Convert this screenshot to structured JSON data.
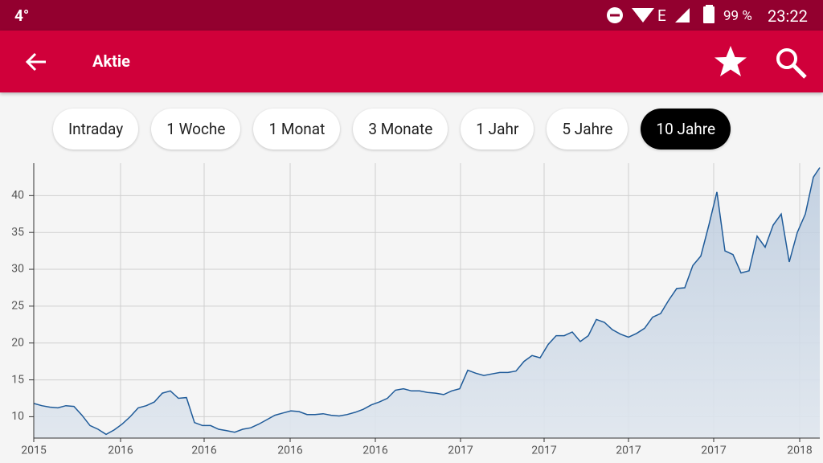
{
  "status_bar": {
    "temperature": "4°",
    "network": "E",
    "battery": "99 %",
    "time": "23:22"
  },
  "toolbar": {
    "title": "Aktie"
  },
  "range_buttons": {
    "options": [
      "Intraday",
      "1 Woche",
      "1 Monat",
      "3 Monate",
      "1 Jahr",
      "5 Jahre",
      "10 Jahre"
    ],
    "selected": 6
  },
  "chart_data": {
    "type": "area",
    "x": [
      0,
      1,
      2,
      3,
      4,
      5,
      6,
      7,
      8,
      9,
      10,
      11,
      12,
      13,
      14,
      15,
      16,
      17,
      18,
      19,
      20,
      21,
      22,
      23,
      24,
      25,
      26,
      27,
      28,
      29,
      30,
      31,
      32,
      33,
      34,
      35,
      36,
      37,
      38,
      39,
      40,
      41,
      42,
      43,
      44,
      45,
      46,
      47,
      48,
      49,
      50,
      51,
      52,
      53,
      54,
      55,
      56,
      57,
      58,
      59,
      60,
      61,
      62,
      63,
      64,
      65,
      66,
      67,
      68,
      69,
      70,
      71,
      72,
      73,
      74,
      75,
      76,
      77,
      78,
      79,
      80,
      81,
      82,
      83,
      84,
      85,
      86,
      87,
      88,
      89,
      90,
      91,
      92,
      93,
      94,
      95,
      96,
      97,
      97.8
    ],
    "values": [
      11.8,
      11.5,
      11.3,
      11.2,
      11.5,
      11.4,
      10.2,
      8.8,
      8.3,
      7.6,
      8.2,
      9.0,
      10.0,
      11.2,
      11.5,
      12.0,
      13.2,
      13.5,
      12.5,
      12.6,
      9.2,
      8.8,
      8.8,
      8.3,
      8.1,
      7.9,
      8.3,
      8.5,
      9.0,
      9.6,
      10.2,
      10.5,
      10.8,
      10.7,
      10.3,
      10.3,
      10.4,
      10.2,
      10.1,
      10.3,
      10.6,
      11.0,
      11.6,
      12.0,
      12.5,
      13.6,
      13.8,
      13.5,
      13.5,
      13.3,
      13.2,
      13.0,
      13.5,
      13.8,
      16.3,
      15.9,
      15.6,
      15.8,
      16.0,
      16.0,
      16.2,
      17.5,
      18.3,
      18.0,
      19.8,
      21.0,
      21.0,
      21.5,
      20.2,
      21.0,
      23.2,
      22.8,
      21.8,
      21.2,
      20.8,
      21.3,
      22.0,
      23.5,
      24.0,
      25.8,
      27.4,
      27.5,
      30.5,
      31.8,
      36.0,
      40.5,
      32.5,
      32.0,
      29.5,
      29.8,
      34.5,
      33.0,
      36.0,
      37.5,
      31.0,
      35.0,
      37.5,
      42.5,
      43.8
    ],
    "color": "#1f5b99",
    "xlim": [
      0,
      97.8
    ],
    "xticks": [
      {
        "value": 0,
        "label": "2015"
      },
      {
        "value": 10.8,
        "label": "2016"
      },
      {
        "value": 21.2,
        "label": "2016"
      },
      {
        "value": 31.9,
        "label": "2016"
      },
      {
        "value": 42.5,
        "label": "2016"
      },
      {
        "value": 53.1,
        "label": "2017"
      },
      {
        "value": 63.5,
        "label": "2017"
      },
      {
        "value": 74,
        "label": "2017"
      },
      {
        "value": 84.6,
        "label": "2017"
      },
      {
        "value": 95.3,
        "label": "2018"
      }
    ],
    "ylim": [
      7.1,
      44.4
    ],
    "yticks": [
      10,
      15,
      20,
      25,
      30,
      35,
      40
    ],
    "grid": true
  }
}
